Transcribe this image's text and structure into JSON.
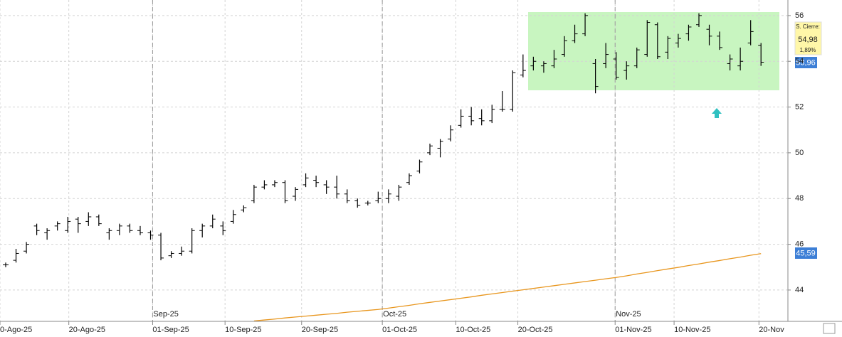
{
  "chart_data": {
    "type": "ohlc",
    "xlim": [
      -0.55,
      75.6
    ],
    "ylim": [
      42.63,
      56.68
    ],
    "yticks": [
      44,
      46,
      48,
      50,
      52,
      54,
      56
    ],
    "xticks": [
      {
        "value": -0.55,
        "label": "0-Ago-25"
      },
      {
        "value": 6.1,
        "label": "20-Ago-25"
      },
      {
        "value": 14.2,
        "label": "01-Sep-25"
      },
      {
        "value": 21.2,
        "label": "10-Sep-25"
      },
      {
        "value": 28.6,
        "label": "20-Sep-25"
      },
      {
        "value": 36.4,
        "label": "01-Oct-25"
      },
      {
        "value": 43.5,
        "label": "10-Oct-25"
      },
      {
        "value": 49.5,
        "label": "20-Oct-25"
      },
      {
        "value": 58.9,
        "label": "01-Nov-25"
      },
      {
        "value": 64.6,
        "label": "10-Nov-25"
      },
      {
        "value": 72.8,
        "label": "20-Nov"
      }
    ],
    "month_ticks": [
      {
        "value": 14.2,
        "label": "Sep-25"
      },
      {
        "value": 36.4,
        "label": "Oct-25"
      },
      {
        "value": 58.9,
        "label": "Nov-25"
      }
    ],
    "grid": true,
    "color": "#000000",
    "open": [
      45.1,
      45.3,
      45.7,
      46.8,
      46.5,
      46.8,
      46.6,
      47.1,
      47.0,
      47.2,
      46.5,
      46.6,
      46.8,
      46.6,
      46.5,
      46.4,
      45.5,
      45.6,
      45.7,
      46.6,
      46.8,
      46.8,
      47.0,
      47.5,
      47.9,
      48.5,
      48.6,
      48.7,
      48.1,
      48.6,
      48.8,
      48.6,
      48.5,
      48.2,
      47.9,
      47.8,
      47.9,
      48.0,
      48.1,
      48.7,
      49.2,
      50.0,
      50.2,
      50.6,
      51.2,
      51.6,
      51.5,
      51.4,
      51.9,
      51.9,
      53.4,
      53.8,
      53.8,
      53.8,
      54.3,
      54.9,
      55.2,
      53.9,
      53.9,
      54.1,
      53.6,
      53.8,
      54.3,
      55.6,
      54.4,
      54.8,
      55.2,
      55.6,
      55.4,
      55.1,
      53.9,
      53.8,
      54.8,
      54.7
    ],
    "high": [
      45.2,
      45.8,
      46.1,
      46.9,
      46.7,
      47.0,
      47.2,
      47.2,
      47.4,
      47.3,
      46.7,
      46.9,
      46.9,
      46.8,
      46.6,
      46.5,
      45.7,
      45.9,
      46.7,
      46.9,
      47.3,
      47.0,
      47.5,
      47.7,
      48.6,
      48.8,
      48.8,
      48.8,
      48.5,
      49.1,
      49.0,
      48.8,
      49.0,
      48.4,
      48.0,
      47.9,
      48.3,
      48.4,
      48.6,
      49.1,
      49.7,
      50.4,
      50.6,
      51.2,
      51.9,
      52.0,
      51.9,
      52.1,
      52.7,
      53.6,
      54.3,
      54.2,
      54.0,
      54.5,
      55.1,
      55.6,
      56.1,
      54.1,
      54.8,
      54.4,
      54.0,
      54.6,
      55.8,
      55.7,
      55.1,
      55.2,
      55.6,
      56.1,
      55.6,
      55.3,
      54.3,
      54.6,
      55.8,
      54.8
    ],
    "low": [
      45.0,
      45.2,
      45.6,
      46.4,
      46.2,
      46.6,
      46.5,
      46.5,
      46.8,
      46.8,
      46.2,
      46.4,
      46.5,
      46.4,
      46.2,
      45.3,
      45.4,
      45.5,
      45.6,
      46.3,
      46.7,
      46.4,
      46.9,
      47.4,
      47.8,
      48.4,
      48.5,
      47.8,
      47.9,
      48.5,
      48.5,
      48.2,
      48.0,
      47.8,
      47.6,
      47.7,
      47.8,
      47.8,
      47.9,
      48.6,
      49.1,
      49.9,
      49.8,
      50.5,
      51.1,
      51.2,
      51.2,
      51.3,
      51.8,
      51.8,
      53.3,
      53.6,
      53.5,
      53.7,
      54.2,
      54.8,
      55.1,
      52.6,
      53.7,
      53.2,
      53.2,
      53.7,
      54.2,
      54.1,
      54.1,
      54.6,
      54.9,
      55.5,
      54.7,
      54.5,
      53.6,
      53.6,
      54.7,
      53.8
    ],
    "close": [
      45.1,
      45.6,
      46.0,
      46.6,
      46.6,
      46.9,
      47.0,
      46.9,
      47.2,
      46.9,
      46.6,
      46.8,
      46.6,
      46.5,
      46.4,
      45.4,
      45.6,
      45.7,
      46.6,
      46.8,
      47.1,
      46.6,
      47.3,
      47.6,
      48.5,
      48.6,
      48.7,
      47.9,
      48.4,
      48.9,
      48.7,
      48.5,
      48.2,
      47.9,
      47.7,
      47.8,
      48.0,
      48.2,
      48.5,
      49.0,
      49.6,
      50.3,
      50.5,
      51.0,
      51.6,
      51.4,
      51.4,
      51.9,
      51.9,
      53.5,
      53.6,
      54.0,
      53.9,
      54.1,
      54.9,
      55.2,
      56.0,
      52.9,
      54.3,
      53.3,
      53.8,
      54.5,
      55.7,
      54.2,
      55.0,
      55.0,
      55.5,
      56.0,
      55.1,
      54.6,
      54.1,
      54.0,
      55.3,
      53.96
    ],
    "average": {
      "color": "#e8961e",
      "values": [
        null,
        null,
        null,
        null,
        null,
        null,
        null,
        null,
        null,
        null,
        null,
        null,
        null,
        null,
        null,
        null,
        null,
        null,
        null,
        null,
        null,
        null,
        null,
        null,
        42.65,
        42.69,
        42.73,
        42.78,
        42.82,
        42.86,
        42.9,
        42.94,
        42.98,
        43.03,
        43.07,
        43.11,
        43.15,
        43.21,
        43.27,
        43.33,
        43.4,
        43.46,
        43.52,
        43.58,
        43.64,
        43.7,
        43.77,
        43.83,
        43.89,
        43.95,
        44.01,
        44.07,
        44.13,
        44.19,
        44.25,
        44.31,
        44.37,
        44.43,
        44.49,
        44.55,
        44.62,
        44.7,
        44.77,
        44.85,
        44.92,
        44.99,
        45.07,
        45.14,
        45.22,
        45.29,
        45.37,
        45.44,
        45.52,
        45.59
      ]
    },
    "price_tags": {
      "title": "S. Cierre:",
      "value": "54,98",
      "change": "1,89%",
      "last": "53,96",
      "average": "45,59"
    }
  }
}
